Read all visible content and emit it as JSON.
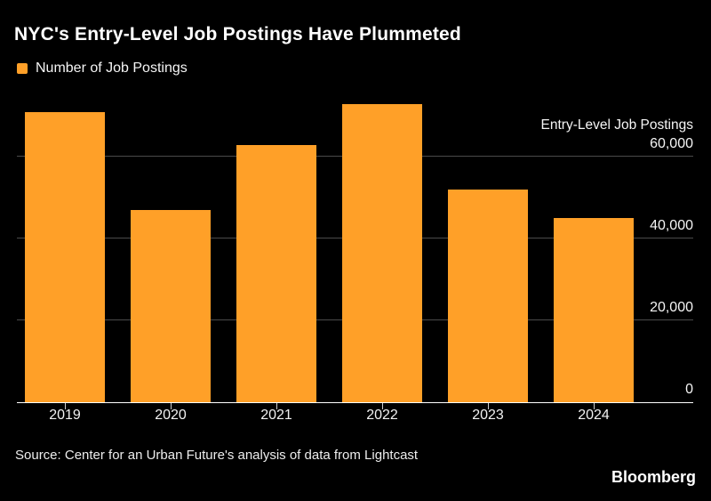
{
  "title": "NYC's Entry-Level Job Postings Have Plummeted",
  "legend": {
    "label": "Number of Job Postings",
    "swatch_icon": "legend-swatch-square",
    "swatch_color": "#FFA028"
  },
  "source": "Source: Center for an Urban Future's analysis of data from Lightcast",
  "brand": "Bloomberg",
  "colors": {
    "background": "#000000",
    "bar": "#FFA028",
    "gridline": "#4a4a4a",
    "axis_line": "#ffffff",
    "text": "#ffffff"
  },
  "chart_data": {
    "type": "bar",
    "title": "NYC's Entry-Level Job Postings Have Plummeted",
    "series_name": "Number of Job Postings",
    "categories": [
      "2019",
      "2020",
      "2021",
      "2022",
      "2023",
      "2024"
    ],
    "values": [
      71000,
      47000,
      63000,
      73000,
      52000,
      45000
    ],
    "xlabel": "",
    "ylabel": "Entry-Level Job Postings",
    "ylim": [
      0,
      74000
    ],
    "yticks": [
      0,
      20000,
      40000,
      60000
    ],
    "ytick_labels": [
      "0",
      "20,000",
      "40,000",
      "60,000"
    ],
    "ytick_side": "right",
    "grid": true,
    "legend_position": "top-left",
    "bar_color": "#FFA028",
    "background": "black"
  }
}
